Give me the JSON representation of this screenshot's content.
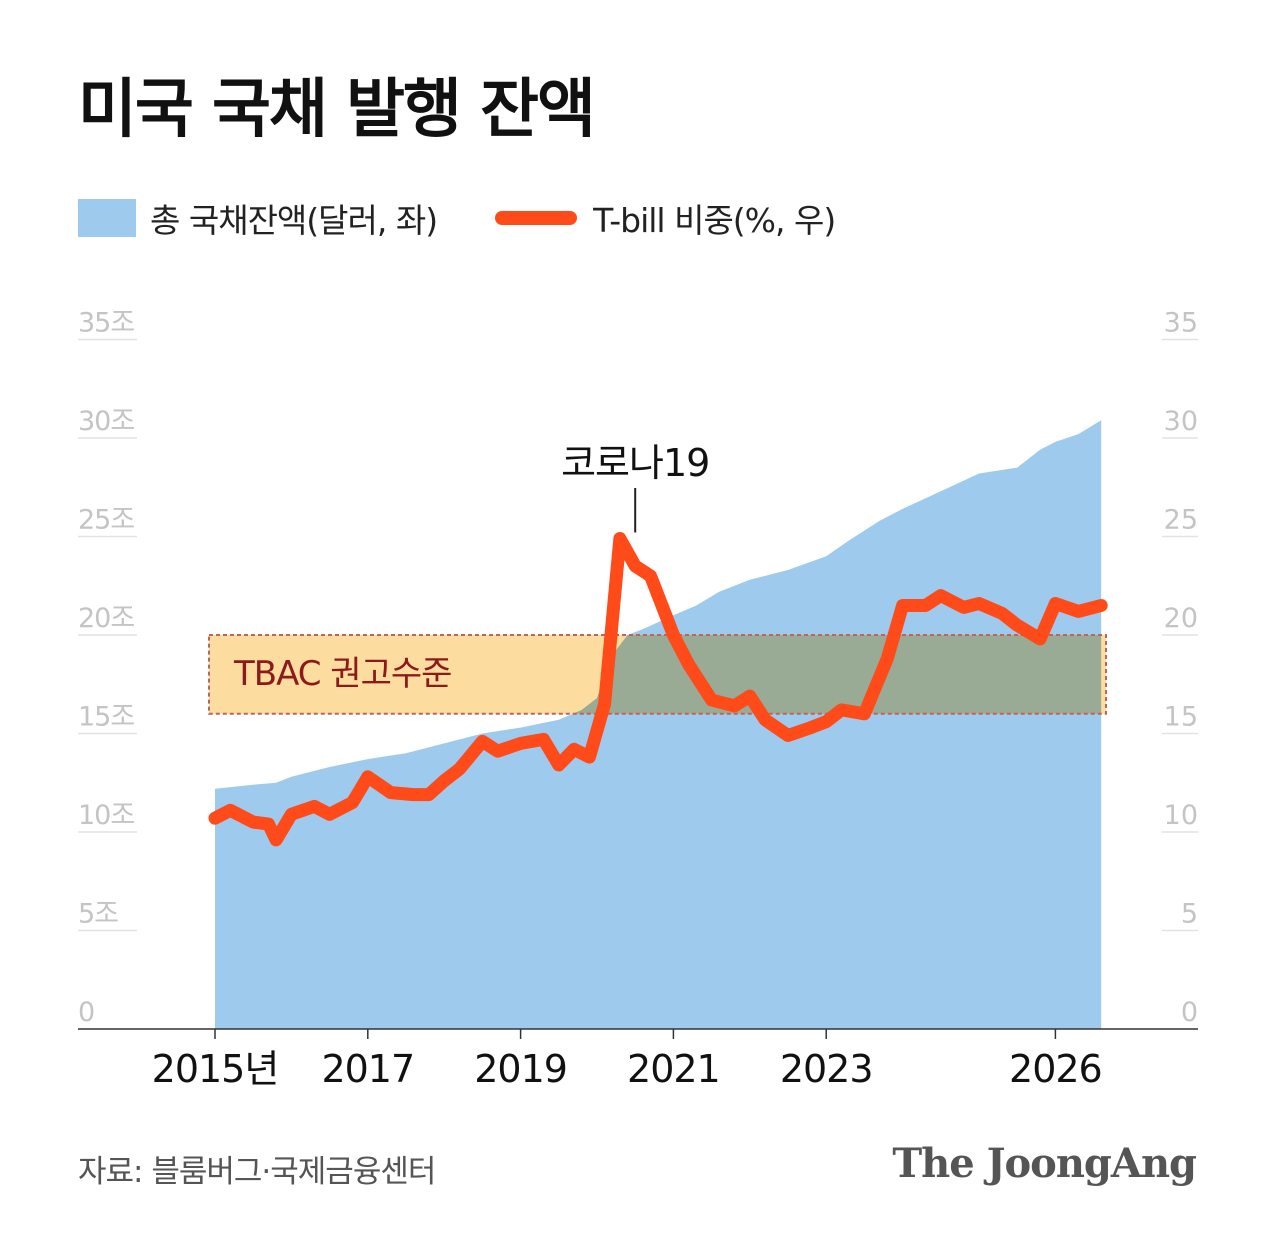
{
  "title": "미국 국채 발행 잔액",
  "legend": {
    "area_label": "총 국채잔액(달러, 좌)",
    "line_label": "T-bill 비중(%, 우)"
  },
  "source": "자료: 블룸버그·국제금융센터",
  "brand": "The JoongAng",
  "colors": {
    "area": "#9ecaed",
    "line": "#ff4a1a",
    "band_fill": "#fddca0",
    "band_border": "#c0645a",
    "band_overlap": "#9aab95",
    "band_text": "#8b1a1a",
    "axis_text": "#c4c4c4"
  },
  "chart_data": {
    "type": "area",
    "title": "미국 국채 발행 잔액",
    "x_tick_labels": [
      "2015년",
      "2017",
      "2019",
      "2021",
      "2023",
      "2026"
    ],
    "left_tick_labels": [
      "0",
      "5조",
      "10조",
      "15조",
      "20조",
      "25조",
      "30조",
      "35조"
    ],
    "right_tick_labels": [
      "0",
      "5",
      "10",
      "15",
      "20",
      "25",
      "30",
      "35"
    ],
    "xlim": [
      2015.0,
      2026.8
    ],
    "ylim_left": [
      0,
      35
    ],
    "ylim_right": [
      0,
      35
    ],
    "band": {
      "label": "TBAC 권고수준",
      "from": 16,
      "to": 20
    },
    "annotation": {
      "label": "코로나19",
      "x": 2020.5,
      "y": 25
    },
    "series": [
      {
        "name": "총 국채잔액(달러, 좌)",
        "axis": "left",
        "type": "area",
        "x": [
          2015.0,
          2015.5,
          2015.8,
          2016.0,
          2016.5,
          2017.0,
          2017.5,
          2018.0,
          2018.5,
          2019.0,
          2019.5,
          2019.8,
          2020.0,
          2020.2,
          2020.4,
          2020.6,
          2021.0,
          2021.3,
          2021.6,
          2022.0,
          2022.5,
          2023.0,
          2023.3,
          2023.7,
          2024.0,
          2024.5,
          2025.0,
          2025.5,
          2025.8,
          2026.0,
          2026.3,
          2026.6
        ],
        "values": [
          12.2,
          12.4,
          12.5,
          12.8,
          13.3,
          13.7,
          14.0,
          14.5,
          15.0,
          15.3,
          15.7,
          16.2,
          16.8,
          19.0,
          20.0,
          20.3,
          21.0,
          21.5,
          22.2,
          22.8,
          23.3,
          24.0,
          24.8,
          25.8,
          26.4,
          27.3,
          28.2,
          28.5,
          29.4,
          29.8,
          30.2,
          30.9
        ]
      },
      {
        "name": "T-bill 비중(%, 우)",
        "axis": "right",
        "type": "line",
        "x": [
          2015.0,
          2015.2,
          2015.5,
          2015.7,
          2015.8,
          2016.0,
          2016.3,
          2016.5,
          2016.8,
          2017.0,
          2017.3,
          2017.6,
          2017.8,
          2018.0,
          2018.2,
          2018.5,
          2018.7,
          2019.0,
          2019.3,
          2019.5,
          2019.7,
          2019.9,
          2020.1,
          2020.3,
          2020.5,
          2020.7,
          2021.0,
          2021.2,
          2021.5,
          2021.8,
          2022.0,
          2022.2,
          2022.5,
          2022.8,
          2023.0,
          2023.2,
          2023.5,
          2023.8,
          2024.0,
          2024.3,
          2024.5,
          2024.8,
          2025.0,
          2025.3,
          2025.5,
          2025.8,
          2026.0,
          2026.3,
          2026.6
        ],
        "values": [
          10.7,
          11.1,
          10.5,
          10.4,
          9.6,
          10.9,
          11.3,
          10.9,
          11.5,
          12.8,
          12.0,
          11.9,
          11.9,
          12.6,
          13.2,
          14.6,
          14.1,
          14.5,
          14.7,
          13.4,
          14.2,
          13.8,
          16.5,
          24.9,
          23.5,
          23.0,
          20.0,
          18.5,
          16.7,
          16.4,
          16.9,
          15.7,
          14.9,
          15.3,
          15.6,
          16.2,
          16.0,
          18.8,
          21.5,
          21.5,
          22.0,
          21.4,
          21.6,
          21.1,
          20.5,
          19.8,
          21.6,
          21.2,
          21.5
        ]
      }
    ]
  }
}
